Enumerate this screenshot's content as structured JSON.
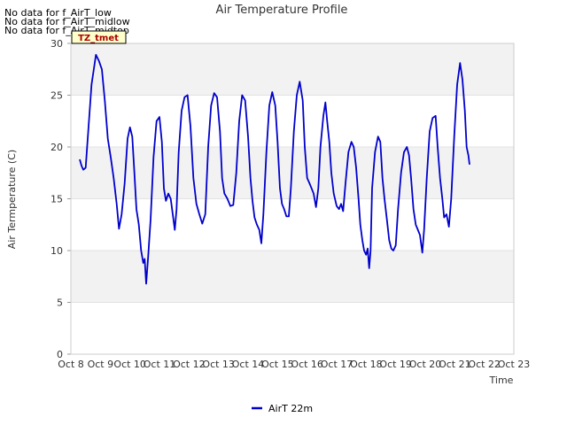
{
  "messages": [
    "No data for f_AirT_low",
    "No data for f_AirT_midlow",
    "No data for f_AirT_midtop"
  ],
  "tz_label": "TZ_tmet",
  "chart_data": {
    "type": "line",
    "title": "Air Temperature Profile",
    "xlabel": "Time",
    "ylabel": "Air Termperature (C)",
    "ylim": [
      0,
      30
    ],
    "xlim_days": [
      8,
      23
    ],
    "yticks": [
      0,
      5,
      10,
      15,
      20,
      25,
      30
    ],
    "xticks": [
      {
        "day": 8,
        "label": "Oct 8"
      },
      {
        "day": 9,
        "label": "Oct 9"
      },
      {
        "day": 10,
        "label": "Oct 10"
      },
      {
        "day": 11,
        "label": "Oct 11"
      },
      {
        "day": 12,
        "label": "Oct 12"
      },
      {
        "day": 13,
        "label": "Oct 13"
      },
      {
        "day": 14,
        "label": "Oct 14"
      },
      {
        "day": 15,
        "label": "Oct 15"
      },
      {
        "day": 16,
        "label": "Oct 16"
      },
      {
        "day": 17,
        "label": "Oct 17"
      },
      {
        "day": 18,
        "label": "Oct 18"
      },
      {
        "day": 19,
        "label": "Oct 19"
      },
      {
        "day": 20,
        "label": "Oct 20"
      },
      {
        "day": 21,
        "label": "Oct 21"
      },
      {
        "day": 22,
        "label": "Oct 22"
      },
      {
        "day": 23,
        "label": "Oct 23"
      }
    ],
    "bands": [
      [
        5,
        10
      ],
      [
        15,
        20
      ],
      [
        25,
        30
      ]
    ],
    "band_color": "#f2f2f2",
    "grid": true,
    "legend_position": "bottom-center",
    "series": [
      {
        "name": "AirT 22m",
        "color": "#0000cc",
        "points": [
          [
            8.3,
            18.8
          ],
          [
            8.36,
            18.2
          ],
          [
            8.42,
            17.8
          ],
          [
            8.5,
            18.0
          ],
          [
            8.6,
            22.0
          ],
          [
            8.7,
            26.0
          ],
          [
            8.85,
            28.9
          ],
          [
            8.95,
            28.3
          ],
          [
            9.05,
            27.5
          ],
          [
            9.15,
            24.5
          ],
          [
            9.25,
            20.8
          ],
          [
            9.35,
            19.0
          ],
          [
            9.45,
            17.0
          ],
          [
            9.55,
            14.5
          ],
          [
            9.63,
            12.1
          ],
          [
            9.72,
            13.5
          ],
          [
            9.82,
            16.5
          ],
          [
            9.92,
            20.8
          ],
          [
            10.0,
            21.9
          ],
          [
            10.08,
            21.0
          ],
          [
            10.15,
            17.5
          ],
          [
            10.22,
            14.0
          ],
          [
            10.3,
            12.5
          ],
          [
            10.38,
            10.0
          ],
          [
            10.45,
            8.8
          ],
          [
            10.5,
            9.2
          ],
          [
            10.55,
            6.8
          ],
          [
            10.62,
            9.5
          ],
          [
            10.7,
            13.0
          ],
          [
            10.8,
            19.0
          ],
          [
            10.9,
            22.5
          ],
          [
            11.0,
            22.9
          ],
          [
            11.08,
            20.5
          ],
          [
            11.15,
            16.0
          ],
          [
            11.22,
            14.8
          ],
          [
            11.3,
            15.5
          ],
          [
            11.38,
            15.0
          ],
          [
            11.45,
            13.5
          ],
          [
            11.52,
            12.0
          ],
          [
            11.58,
            14.0
          ],
          [
            11.65,
            19.5
          ],
          [
            11.75,
            23.5
          ],
          [
            11.85,
            24.8
          ],
          [
            11.95,
            25.0
          ],
          [
            12.05,
            22.0
          ],
          [
            12.15,
            17.0
          ],
          [
            12.25,
            14.5
          ],
          [
            12.35,
            13.5
          ],
          [
            12.45,
            12.6
          ],
          [
            12.55,
            13.5
          ],
          [
            12.65,
            20.0
          ],
          [
            12.75,
            24.0
          ],
          [
            12.85,
            25.2
          ],
          [
            12.95,
            24.8
          ],
          [
            13.05,
            21.5
          ],
          [
            13.12,
            17.0
          ],
          [
            13.2,
            15.5
          ],
          [
            13.3,
            15.0
          ],
          [
            13.4,
            14.3
          ],
          [
            13.5,
            14.4
          ],
          [
            13.6,
            17.5
          ],
          [
            13.7,
            22.5
          ],
          [
            13.8,
            25.0
          ],
          [
            13.9,
            24.5
          ],
          [
            14.0,
            21.0
          ],
          [
            14.08,
            17.0
          ],
          [
            14.15,
            14.8
          ],
          [
            14.22,
            13.2
          ],
          [
            14.3,
            12.5
          ],
          [
            14.38,
            12.0
          ],
          [
            14.45,
            10.7
          ],
          [
            14.52,
            13.5
          ],
          [
            14.62,
            19.5
          ],
          [
            14.72,
            24.0
          ],
          [
            14.82,
            25.3
          ],
          [
            14.92,
            24.0
          ],
          [
            15.0,
            20.5
          ],
          [
            15.08,
            16.0
          ],
          [
            15.15,
            14.5
          ],
          [
            15.22,
            14.0
          ],
          [
            15.3,
            13.3
          ],
          [
            15.38,
            13.3
          ],
          [
            15.45,
            16.0
          ],
          [
            15.55,
            21.5
          ],
          [
            15.65,
            25.0
          ],
          [
            15.75,
            26.3
          ],
          [
            15.85,
            24.5
          ],
          [
            15.92,
            20.0
          ],
          [
            16.0,
            17.0
          ],
          [
            16.08,
            16.5
          ],
          [
            16.15,
            16.0
          ],
          [
            16.22,
            15.5
          ],
          [
            16.3,
            14.2
          ],
          [
            16.38,
            16.0
          ],
          [
            16.45,
            20.0
          ],
          [
            16.55,
            23.0
          ],
          [
            16.62,
            24.3
          ],
          [
            16.68,
            22.5
          ],
          [
            16.75,
            20.5
          ],
          [
            16.82,
            17.5
          ],
          [
            16.9,
            15.5
          ],
          [
            17.0,
            14.3
          ],
          [
            17.08,
            14.0
          ],
          [
            17.15,
            14.5
          ],
          [
            17.22,
            13.8
          ],
          [
            17.3,
            16.5
          ],
          [
            17.4,
            19.5
          ],
          [
            17.5,
            20.5
          ],
          [
            17.58,
            20.0
          ],
          [
            17.66,
            18.0
          ],
          [
            17.74,
            15.0
          ],
          [
            17.8,
            12.5
          ],
          [
            17.87,
            11.0
          ],
          [
            17.93,
            10.0
          ],
          [
            18.0,
            9.6
          ],
          [
            18.05,
            10.2
          ],
          [
            18.1,
            8.3
          ],
          [
            18.15,
            10.0
          ],
          [
            18.2,
            16.0
          ],
          [
            18.3,
            19.5
          ],
          [
            18.4,
            21.0
          ],
          [
            18.48,
            20.5
          ],
          [
            18.55,
            17.0
          ],
          [
            18.62,
            15.0
          ],
          [
            18.7,
            13.0
          ],
          [
            18.78,
            11.0
          ],
          [
            18.85,
            10.2
          ],
          [
            18.92,
            10.0
          ],
          [
            19.0,
            10.5
          ],
          [
            19.08,
            14.0
          ],
          [
            19.18,
            17.5
          ],
          [
            19.28,
            19.5
          ],
          [
            19.38,
            20.0
          ],
          [
            19.45,
            19.2
          ],
          [
            19.52,
            17.0
          ],
          [
            19.6,
            14.0
          ],
          [
            19.68,
            12.5
          ],
          [
            19.75,
            12.0
          ],
          [
            19.82,
            11.5
          ],
          [
            19.9,
            9.8
          ],
          [
            19.96,
            12.0
          ],
          [
            20.05,
            17.0
          ],
          [
            20.15,
            21.5
          ],
          [
            20.25,
            22.8
          ],
          [
            20.35,
            23.0
          ],
          [
            20.42,
            20.0
          ],
          [
            20.5,
            17.0
          ],
          [
            20.58,
            15.0
          ],
          [
            20.64,
            13.2
          ],
          [
            20.72,
            13.5
          ],
          [
            20.8,
            12.3
          ],
          [
            20.88,
            15.0
          ],
          [
            20.98,
            21.0
          ],
          [
            21.08,
            26.0
          ],
          [
            21.18,
            28.1
          ],
          [
            21.26,
            26.5
          ],
          [
            21.34,
            23.5
          ],
          [
            21.4,
            20.0
          ],
          [
            21.46,
            19.2
          ],
          [
            21.5,
            18.3
          ]
        ]
      }
    ]
  }
}
